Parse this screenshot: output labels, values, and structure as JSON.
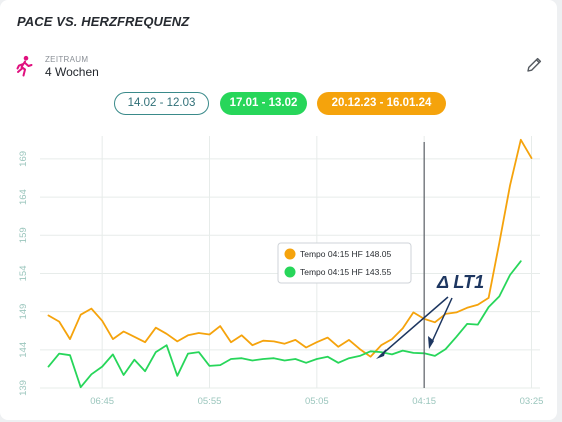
{
  "header": {
    "title": "PACE VS. HERZFREQUENZ",
    "period_caption": "ZEITRAUM",
    "period_value": "4 Wochen"
  },
  "filters": [
    {
      "label": "14.02 - 12.03",
      "color": "#2f6f77"
    },
    {
      "label": "17.01 - 13.02",
      "color": "#27d65a"
    },
    {
      "label": "20.12.23 - 16.01.24",
      "color": "#f5a30c"
    }
  ],
  "chart_data": {
    "type": "line",
    "xlabel": "",
    "ylabel": "",
    "x_ticks": [
      "06:45",
      "05:55",
      "05:05",
      "04:15",
      "03:25"
    ],
    "x_tick_index": [
      5,
      15,
      25,
      35,
      45
    ],
    "y_ticks": [
      139,
      144,
      149,
      154,
      159,
      164,
      169
    ],
    "ylim": [
      139,
      172
    ],
    "grid": true,
    "marker_index": 35,
    "series": [
      {
        "color": "#f5a30c",
        "values": [
          148.5,
          147.7,
          145.4,
          148.6,
          149.4,
          147.8,
          145.4,
          146.4,
          145.7,
          145.0,
          146.9,
          146.1,
          145.1,
          145.9,
          146.2,
          146.0,
          147.1,
          145.0,
          145.9,
          144.6,
          145.2,
          145.1,
          144.8,
          145.3,
          144.3,
          145.0,
          145.6,
          144.4,
          145.3,
          144.1,
          143.1,
          144.6,
          145.4,
          146.8,
          148.9,
          148.05,
          147.6,
          148.7,
          148.9,
          149.5,
          149.9,
          150.8,
          158.0,
          165.5,
          171.5,
          169.1
        ]
      },
      {
        "color": "#27d65a",
        "values": [
          141.8,
          143.5,
          143.3,
          139.1,
          140.8,
          141.8,
          143.4,
          140.7,
          142.7,
          141.2,
          143.7,
          144.6,
          140.6,
          143.5,
          143.7,
          141.9,
          142.0,
          142.8,
          142.9,
          142.6,
          142.8,
          142.9,
          142.6,
          142.8,
          142.3,
          142.8,
          143.1,
          142.3,
          142.9,
          143.2,
          143.8,
          143.7,
          143.4,
          143.9,
          143.6,
          143.55,
          143.2,
          144.1,
          145.7,
          147.4,
          147.3,
          149.6,
          151.0,
          153.8,
          155.6
        ]
      }
    ],
    "tooltip": [
      {
        "text": "Tempo 04:15 HF 148.05",
        "color": "#f5a30c"
      },
      {
        "text": "Tempo 04:15 HF 143.55",
        "color": "#27d65a"
      }
    ],
    "annotation": "Δ LT1"
  }
}
